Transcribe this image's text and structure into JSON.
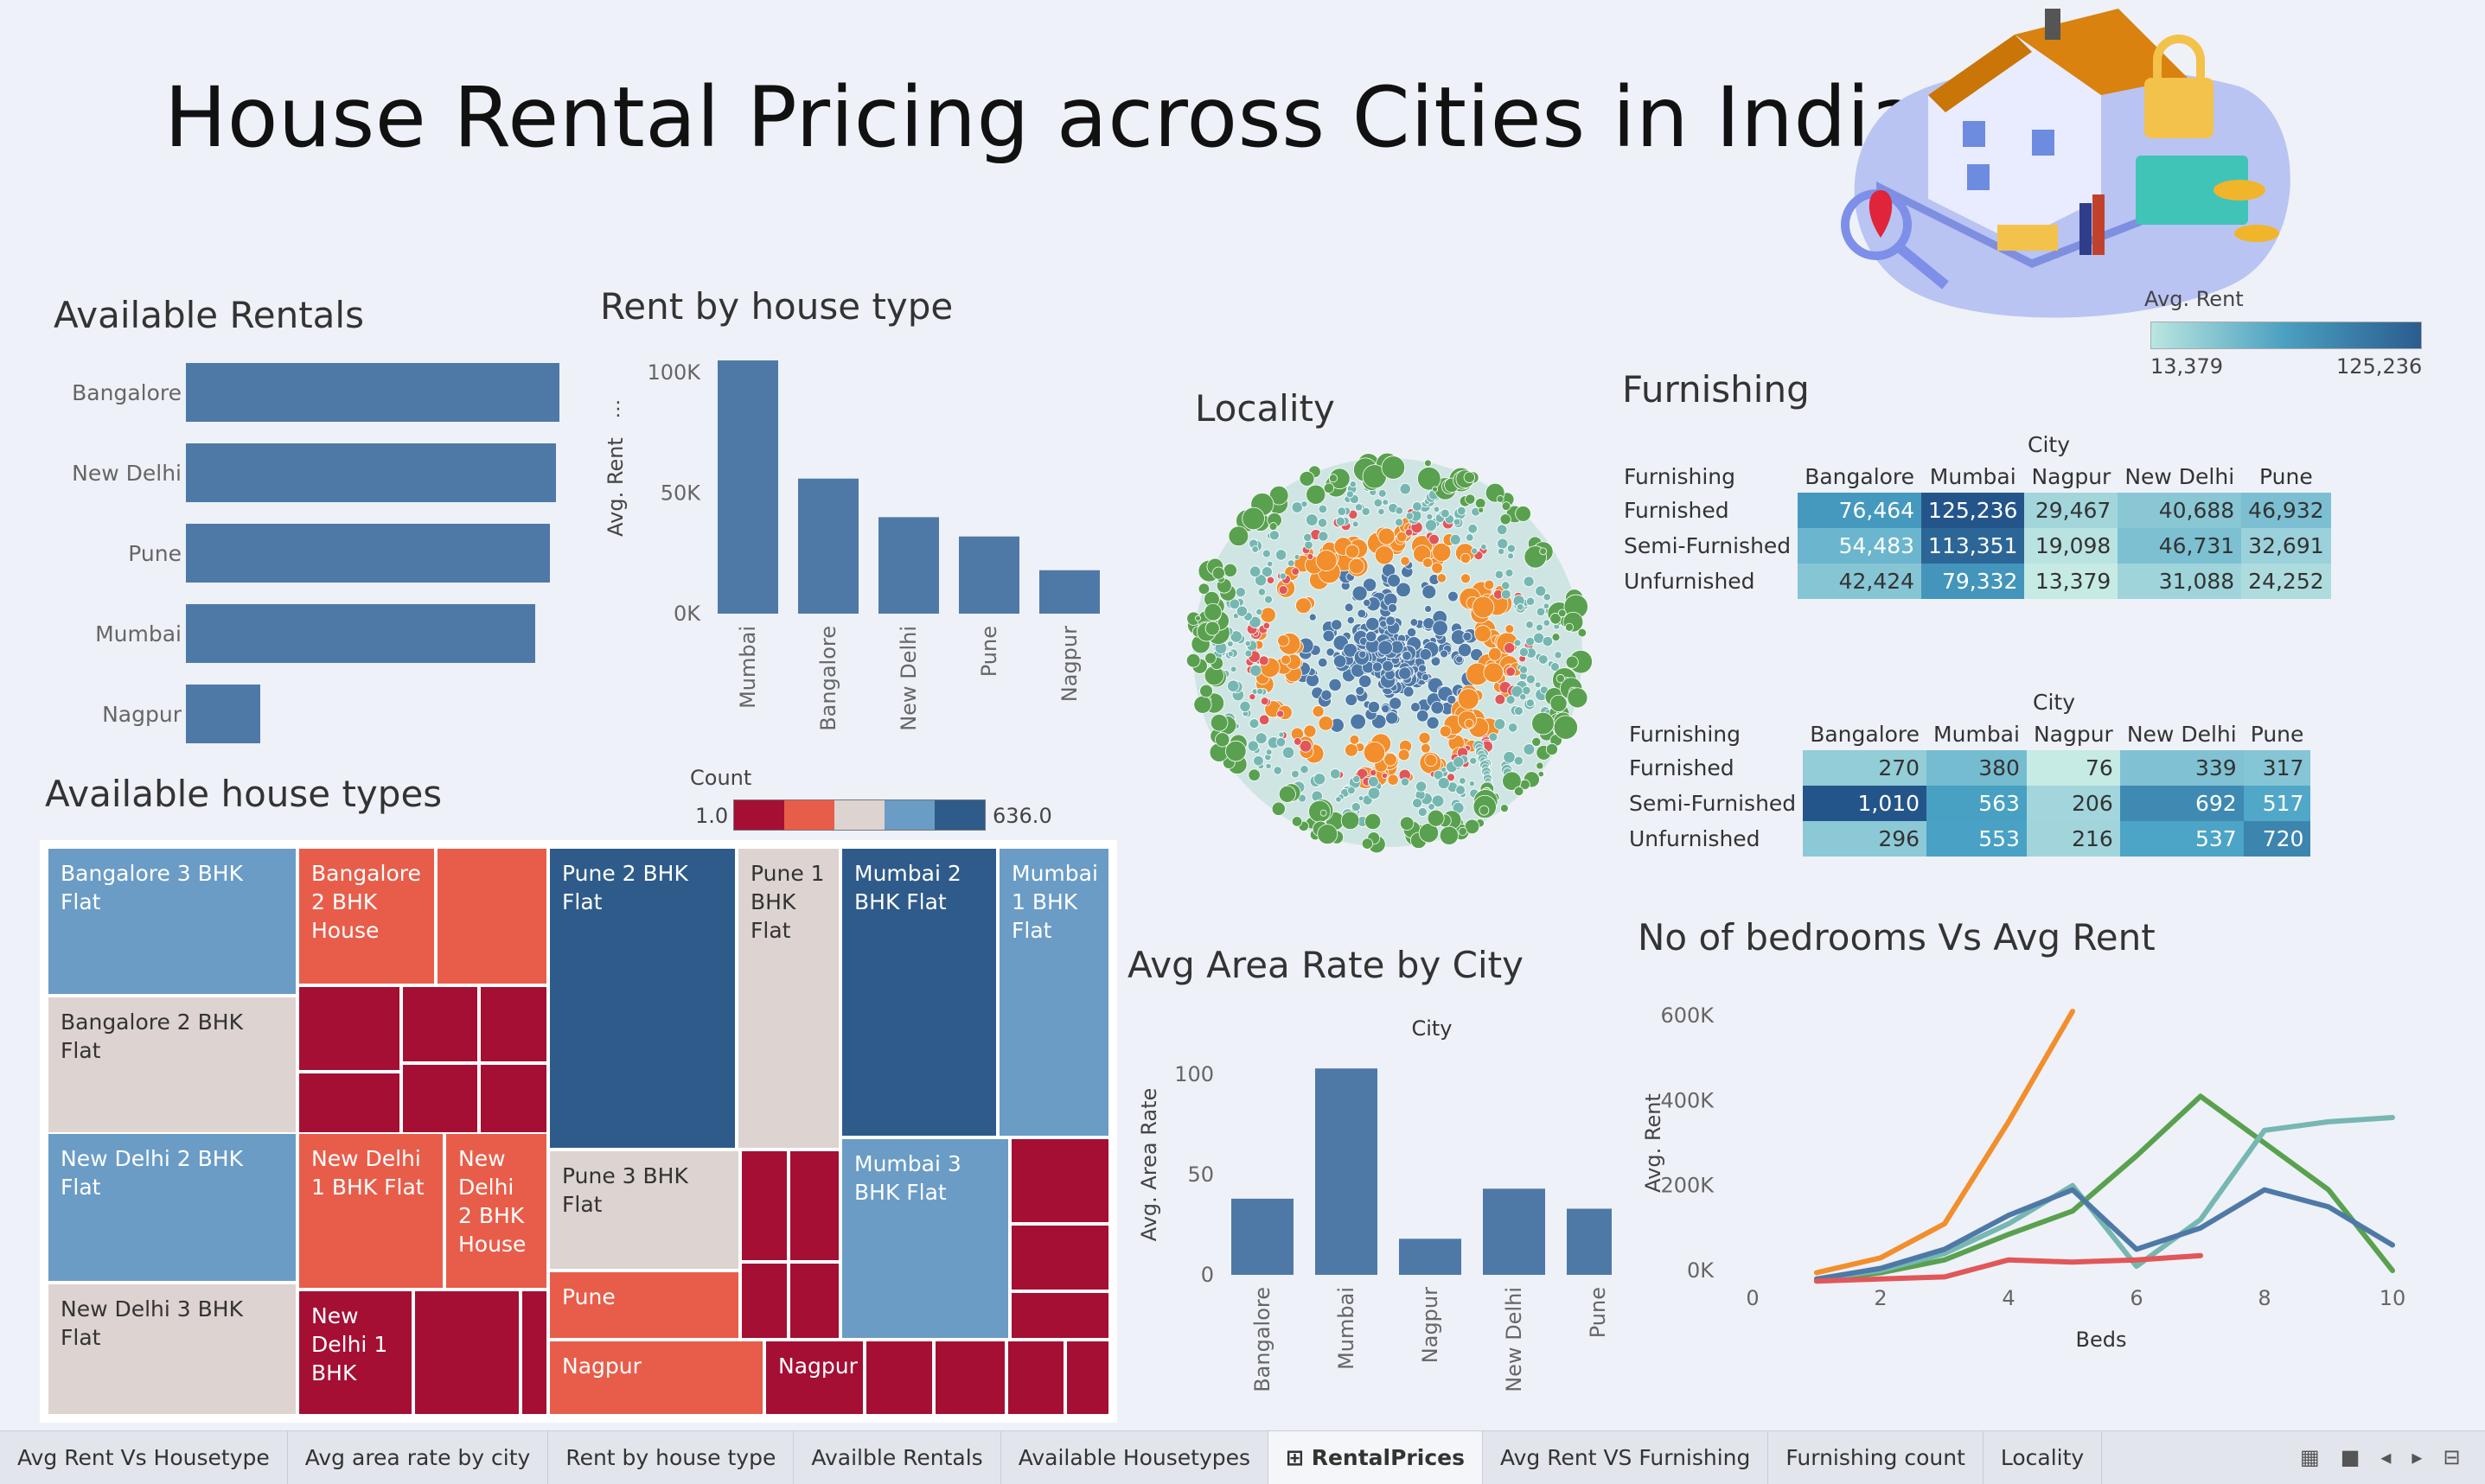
{
  "title": "House Rental Pricing across Cities in India",
  "colors": {
    "bar": "#4e79a7",
    "orange": "#f28e2b",
    "green": "#59a14f",
    "teal": "#76b7b2",
    "red": "#e15759",
    "blue": "#4e79a7"
  },
  "available_rentals": {
    "title": "Available Rentals",
    "chart_data": {
      "type": "bar",
      "orientation": "horizontal",
      "categories": [
        "Bangalore",
        "New Delhi",
        "Pune",
        "Mumbai",
        "Nagpur"
      ],
      "values": [
        1000,
        990,
        975,
        935,
        200
      ]
    }
  },
  "rent_by_type": {
    "title": "Rent by house type",
    "chart_data": {
      "type": "bar",
      "categories": [
        "Mumbai",
        "Bangalore",
        "New Delhi",
        "Pune",
        "Nagpur"
      ],
      "values": [
        105000,
        56000,
        40000,
        32000,
        18000
      ],
      "ylabel": "Avg. Rent",
      "yticks": [
        "100K",
        "50K",
        "0K"
      ],
      "ylim": [
        0,
        105000
      ]
    }
  },
  "locality": {
    "title": "Locality"
  },
  "avg_rent_legend": {
    "title": "Avg. Rent",
    "min": "13,379",
    "max": "125,236"
  },
  "furnishing": {
    "title": "Furnishing",
    "col_header": "City",
    "row_header": "Furnishing",
    "cities": [
      "Bangalore",
      "Mumbai",
      "Nagpur",
      "New Delhi",
      "Pune"
    ],
    "rows": [
      {
        "label": "Furnished",
        "values": [
          "76,464",
          "125,236",
          "29,467",
          "40,688",
          "46,932"
        ],
        "nums": [
          76464,
          125236,
          29467,
          40688,
          46932
        ]
      },
      {
        "label": "Semi-Furnished",
        "values": [
          "54,483",
          "113,351",
          "19,098",
          "46,731",
          "32,691"
        ],
        "nums": [
          54483,
          113351,
          19098,
          46731,
          32691
        ]
      },
      {
        "label": "Unfurnished",
        "values": [
          "42,424",
          "79,332",
          "13,379",
          "31,088",
          "24,252"
        ],
        "nums": [
          42424,
          79332,
          13379,
          31088,
          24252
        ]
      }
    ]
  },
  "furnishing_count": {
    "col_header": "City",
    "row_header": "Furnishing",
    "cities": [
      "Bangalore",
      "Mumbai",
      "Nagpur",
      "New Delhi",
      "Pune"
    ],
    "rows": [
      {
        "label": "Furnished",
        "values": [
          "270",
          "380",
          "76",
          "339",
          "317"
        ],
        "nums": [
          270,
          380,
          76,
          339,
          317
        ]
      },
      {
        "label": "Semi-Furnished",
        "values": [
          "1,010",
          "563",
          "206",
          "692",
          "517"
        ],
        "nums": [
          1010,
          563,
          206,
          692,
          517
        ]
      },
      {
        "label": "Unfurnished",
        "values": [
          "296",
          "553",
          "216",
          "537",
          "720"
        ],
        "nums": [
          296,
          553,
          216,
          537,
          720
        ]
      }
    ]
  },
  "house_types": {
    "title": "Available house types",
    "legend": {
      "title": "Count",
      "min": "1.0",
      "max": "636.0"
    },
    "tiles": [
      "Bangalore 3 BHK Flat",
      "Bangalore 2 BHK Flat",
      "Bangalore 2 BHK House",
      "New Delhi 2 BHK Flat",
      "New Delhi 3 BHK Flat",
      "New Delhi 1 BHK Flat",
      "New Delhi 2 BHK House",
      "New Delhi 1 BHK",
      "Pune 2 BHK Flat",
      "Pune 1 BHK Flat",
      "Pune 3 BHK Flat",
      "Pune",
      "Nagpur",
      "Nagpur",
      "Mumbai 2 BHK Flat",
      "Mumbai 1 BHK Flat",
      "Mumbai 3 BHK Flat"
    ]
  },
  "area_rate": {
    "title": "Avg Area Rate by City",
    "chart_data": {
      "type": "bar",
      "categories": [
        "Bangalore",
        "Mumbai",
        "Nagpur",
        "New Delhi",
        "Pune"
      ],
      "values": [
        38,
        103,
        18,
        43,
        33
      ],
      "xlabel": "City",
      "ylabel": "Avg. Area Rate",
      "yticks": [
        "100",
        "50",
        "0"
      ],
      "ylim": [
        0,
        110
      ]
    }
  },
  "bedrooms": {
    "title": "No of bedrooms Vs Avg Rent",
    "chart_data": {
      "type": "line",
      "xlabel": "Beds",
      "ylabel": "Avg. Rent",
      "xticks": [
        "0",
        "2",
        "4",
        "6",
        "8",
        "10"
      ],
      "yticks": [
        "600K",
        "400K",
        "200K",
        "0K"
      ],
      "xlim": [
        0,
        10
      ],
      "ylim": [
        0,
        600000
      ],
      "series": [
        {
          "color": "#f28e2b",
          "x": [
            1,
            2,
            3,
            4,
            5
          ],
          "y": [
            -5000,
            30000,
            110000,
            350000,
            610000
          ]
        },
        {
          "color": "#59a14f",
          "x": [
            1,
            2,
            3,
            4,
            5,
            6,
            7,
            8,
            9,
            10
          ],
          "y": [
            -25000,
            -5000,
            25000,
            85000,
            140000,
            270000,
            410000,
            300000,
            190000,
            0
          ]
        },
        {
          "color": "#76b7b2",
          "x": [
            1,
            2,
            3,
            4,
            5,
            6,
            7,
            8,
            9,
            10
          ],
          "y": [
            -20000,
            0,
            40000,
            110000,
            200000,
            10000,
            120000,
            330000,
            350000,
            360000
          ]
        },
        {
          "color": "#4e79a7",
          "x": [
            1,
            2,
            3,
            4,
            5,
            6,
            7,
            8,
            9,
            10
          ],
          "y": [
            -20000,
            5000,
            50000,
            130000,
            190000,
            50000,
            100000,
            190000,
            150000,
            60000
          ]
        },
        {
          "color": "#e15759",
          "x": [
            1,
            2,
            3,
            4,
            5,
            6,
            7
          ],
          "y": [
            -25000,
            -20000,
            -15000,
            25000,
            20000,
            25000,
            35000
          ]
        }
      ]
    }
  },
  "tabs": [
    "Avg Rent  Vs Housetype",
    "Avg area rate by city",
    "Rent by house type",
    "Availble Rentals",
    "Available Housetypes",
    "RentalPrices",
    "Avg Rent VS Furnishing",
    "Furnishing count",
    "Locality"
  ],
  "active_tab": "RentalPrices"
}
